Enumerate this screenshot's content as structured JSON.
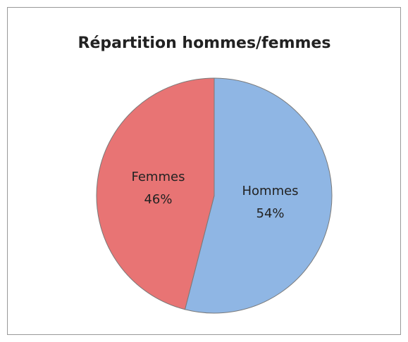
{
  "chart_data": {
    "type": "pie",
    "title": "Répartition hommes/femmes",
    "categories": [
      "Hommes",
      "Femmes"
    ],
    "values": [
      54,
      46
    ],
    "value_labels": [
      "54%",
      "46%"
    ],
    "colors": [
      "#8fb6e4",
      "#e87474"
    ]
  }
}
